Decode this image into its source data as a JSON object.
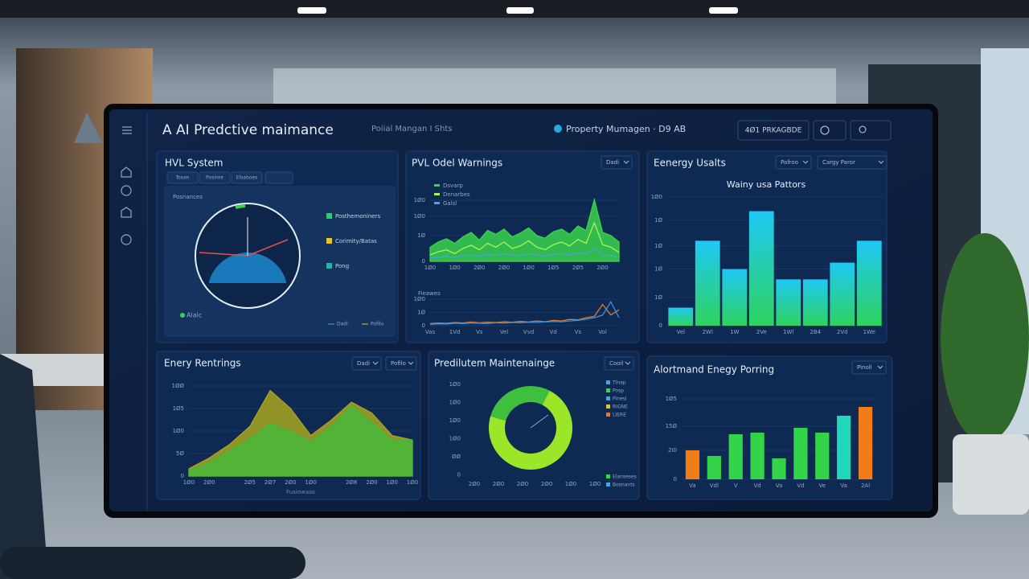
{
  "header": {
    "title": "A AI Predctive maimance",
    "subtitle": "Poiial Mangan I Shts",
    "property": "Property Mumagen · D9 AB",
    "badge": "4Ø1 PRKAGBDE"
  },
  "hvac": {
    "title": "HVL System",
    "tabs": [
      "Tosan",
      "Posinre",
      "Elsaboes"
    ],
    "gauge_label": "Posnances",
    "legend": [
      {
        "name": "Posthemoniners",
        "color": "#2ecc71"
      },
      {
        "name": "Corimity/Batas",
        "color": "#e5c32a"
      },
      {
        "name": "Pong",
        "color": "#1abc9c"
      }
    ],
    "status": "Alalc",
    "footer": [
      "Dadi",
      "Pofilo"
    ]
  },
  "warnings": {
    "type": "area",
    "title": "PVL Odel Warnings",
    "dropdown": "Dadi",
    "categories": [
      "1Ø0",
      null,
      null,
      "1Ø0",
      null,
      null,
      "2Ø0",
      null,
      null,
      "2Ø0",
      null,
      null,
      "1Ø0",
      null,
      null,
      "1Ø5",
      null,
      null,
      "2Ø5",
      null,
      null,
      "2Ø0",
      null,
      null
    ],
    "series": [
      {
        "name": "Dsvarp",
        "color": "#3ad34e",
        "values": [
          22,
          30,
          35,
          28,
          38,
          45,
          33,
          48,
          42,
          50,
          38,
          44,
          52,
          40,
          36,
          46,
          50,
          42,
          55,
          48,
          96,
          45,
          40,
          30
        ]
      },
      {
        "name": "Denarbes",
        "color": "#a8f25c",
        "values": [
          10,
          15,
          18,
          12,
          20,
          25,
          18,
          28,
          22,
          30,
          20,
          24,
          32,
          22,
          18,
          26,
          30,
          24,
          34,
          28,
          60,
          26,
          22,
          14
        ]
      },
      {
        "name": "Galsl",
        "color": "#4aa3df",
        "values": [
          5,
          6,
          8,
          6,
          9,
          10,
          8,
          11,
          9,
          12,
          10,
          9,
          12,
          10,
          8,
          11,
          12,
          10,
          13,
          11,
          20,
          10,
          9,
          6
        ]
      }
    ],
    "ylim": [
      0,
      100
    ],
    "yticks": [
      {
        "value": 0,
        "label": "0"
      },
      {
        "value": 40,
        "label": "1Ø"
      },
      {
        "value": 70,
        "label": "1Ø0"
      },
      {
        "value": 95,
        "label": "1Ø0"
      }
    ]
  },
  "trend": {
    "type": "line",
    "title": "Fieawes",
    "categories": [
      "Vas",
      null,
      null,
      "1Vd",
      null,
      null,
      "Vs",
      null,
      null,
      "Vel",
      null,
      null,
      "Vvd",
      null,
      null,
      "Vd",
      null,
      null,
      "Vs",
      null,
      null,
      "Vol",
      null,
      null
    ],
    "series": [
      {
        "color": "#e07b2a",
        "values": [
          8,
          10,
          9,
          12,
          10,
          14,
          11,
          13,
          12,
          15,
          13,
          16,
          14,
          18,
          15,
          20,
          18,
          24,
          22,
          30,
          35,
          80,
          40,
          60
        ]
      },
      {
        "color": "#3a8fe0",
        "values": [
          5,
          7,
          6,
          9,
          8,
          10,
          9,
          8,
          11,
          10,
          12,
          11,
          13,
          12,
          14,
          16,
          15,
          18,
          20,
          25,
          30,
          40,
          90,
          30
        ]
      }
    ],
    "ylim": [
      0,
      100
    ],
    "yticks": [
      {
        "value": 0,
        "label": "0"
      },
      {
        "value": 50,
        "label": "1Ø"
      },
      {
        "value": 100,
        "label": "1Ø0"
      }
    ]
  },
  "usage": {
    "type": "bar",
    "title": "Eenergy Usalts",
    "subtitle": "Wainy usa Pattors",
    "buttons": [
      "Pafroo",
      "Cargy Paror"
    ],
    "categories": [
      "Vel",
      "2Wl",
      "1W",
      "2Ve",
      "1Wl",
      "2B4",
      "2Vd",
      "1We"
    ],
    "values": [
      14,
      66,
      44,
      89,
      36,
      36,
      49,
      66
    ],
    "color": [
      "#1ec8f5",
      "#2fd35e"
    ],
    "ylim": [
      0,
      100
    ],
    "yticks": [
      {
        "value": 0,
        "label": "0"
      },
      {
        "value": 22,
        "label": "1Ø"
      },
      {
        "value": 44,
        "label": "1Ø"
      },
      {
        "value": 62,
        "label": "1Ø"
      },
      {
        "value": 82,
        "label": "1Ø"
      },
      {
        "value": 100,
        "label": "1Ø0"
      }
    ]
  },
  "readings": {
    "type": "area",
    "title": "Enery Rentrings",
    "buttons": [
      "Dadi",
      "Pofilo"
    ],
    "xlabel": "Fusiowaas",
    "categories": [
      "1Ø0",
      "2Ø0",
      null,
      "2Ø5",
      "2Ø7",
      "2Ø0",
      "1Ø0",
      null,
      "2Ø8",
      "2Ø0",
      "1Ø0",
      "1Ø0"
    ],
    "series": [
      {
        "color": "#a8a61e",
        "values": [
          8,
          20,
          35,
          55,
          95,
          75,
          45,
          62,
          82,
          70,
          45,
          40
        ]
      },
      {
        "color": "#46b83a",
        "values": [
          6,
          15,
          28,
          42,
          58,
          50,
          38,
          55,
          78,
          60,
          40,
          40
        ]
      }
    ],
    "ylim": [
      0,
      100
    ],
    "yticks": [
      {
        "value": 0,
        "label": "0"
      },
      {
        "value": 25,
        "label": "5Ø"
      },
      {
        "value": 50,
        "label": "1Ø0"
      },
      {
        "value": 75,
        "label": "1Ø5"
      },
      {
        "value": 100,
        "label": "1ØØ"
      }
    ]
  },
  "maintenance": {
    "type": "pie",
    "title": "Predilutem Maintenainge",
    "dropdown": "Cooil",
    "values": [
      72,
      28
    ],
    "colors": [
      "#9ce62a",
      "#3fbf3e"
    ],
    "y_labels": [
      "1Ø0",
      "1Ø0",
      "1Ø0",
      "1Ø0",
      "ØØ",
      "0"
    ],
    "x_labels": [
      "2Ø0",
      "2Ø0",
      "2Ø0",
      "2Ø0",
      "1Ø0",
      "1Ø0"
    ],
    "legend": [
      {
        "name": "Tlnap",
        "color": "#4aa3df"
      },
      {
        "name": "Posp",
        "color": "#3ad34e"
      },
      {
        "name": "Pinesl",
        "color": "#4aa3df"
      },
      {
        "name": "RIGNE",
        "color": "#e5c32a"
      },
      {
        "name": "LIERE",
        "color": "#e07b2a"
      }
    ],
    "footer": [
      {
        "name": "Elanseses",
        "color": "#3ad34e"
      },
      {
        "name": "Bosnants",
        "color": "#4aa3df"
      }
    ]
  },
  "alert": {
    "type": "bar",
    "title": "Alortmand Enegy Porring",
    "dropdown": "Pinoll",
    "categories": [
      "Va",
      "Vdl",
      "V",
      "Vd",
      "Va",
      "Vd",
      "Ve",
      "Va",
      "2Al"
    ],
    "values": [
      36,
      29,
      56,
      58,
      26,
      64,
      58,
      79,
      90
    ],
    "colors": [
      "#f07d18",
      "#33d44a",
      "#33d44a",
      "#33d44a",
      "#33d44a",
      "#33d44a",
      "#33d44a",
      "#1fd8b8",
      "#f07d18"
    ],
    "ylim": [
      0,
      100
    ],
    "yticks": [
      {
        "value": 0,
        "label": "0"
      },
      {
        "value": 36,
        "label": "2I0"
      },
      {
        "value": 66,
        "label": "15Ø"
      },
      {
        "value": 100,
        "label": "1Ø5"
      }
    ]
  }
}
